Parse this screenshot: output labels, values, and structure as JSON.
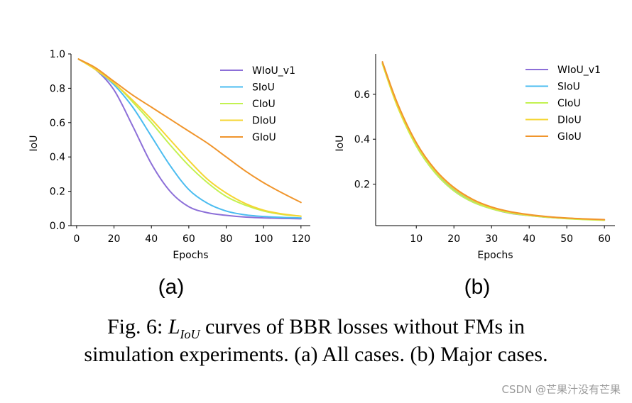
{
  "chart_data": [
    {
      "type": "line",
      "panel_label": "(a)",
      "xlabel": "Epochs",
      "ylabel": "IoU",
      "xlim": [
        -3,
        125
      ],
      "ylim": [
        0,
        1.0
      ],
      "xticks": [
        0,
        20,
        40,
        60,
        80,
        100,
        120
      ],
      "yticks": [
        0.0,
        0.2,
        0.4,
        0.6,
        0.8,
        1.0
      ],
      "ytick_labels": [
        "0.0",
        "0.2",
        "0.4",
        "0.6",
        "0.8",
        "1.0"
      ],
      "legend_position": "top-right",
      "grid": false,
      "x": [
        1,
        10,
        20,
        30,
        40,
        50,
        60,
        70,
        80,
        90,
        100,
        110,
        120
      ],
      "series": [
        {
          "name": "WIoU_v1",
          "color": "#8c6fd8",
          "values": [
            0.97,
            0.91,
            0.79,
            0.58,
            0.36,
            0.2,
            0.11,
            0.075,
            0.06,
            0.05,
            0.045,
            0.042,
            0.04
          ]
        },
        {
          "name": "SIoU",
          "color": "#4bbcf0",
          "values": [
            0.97,
            0.91,
            0.82,
            0.69,
            0.52,
            0.35,
            0.21,
            0.13,
            0.085,
            0.063,
            0.053,
            0.048,
            0.045
          ]
        },
        {
          "name": "CIoU",
          "color": "#c3f251",
          "values": [
            0.97,
            0.91,
            0.83,
            0.72,
            0.6,
            0.47,
            0.35,
            0.25,
            0.17,
            0.12,
            0.085,
            0.065,
            0.055
          ]
        },
        {
          "name": "DIoU",
          "color": "#f5d533",
          "values": [
            0.97,
            0.91,
            0.83,
            0.73,
            0.62,
            0.5,
            0.38,
            0.27,
            0.19,
            0.13,
            0.09,
            0.068,
            0.055
          ]
        },
        {
          "name": "GIoU",
          "color": "#f0952c",
          "values": [
            0.97,
            0.92,
            0.84,
            0.76,
            0.69,
            0.62,
            0.55,
            0.48,
            0.4,
            0.32,
            0.25,
            0.19,
            0.135
          ]
        }
      ]
    },
    {
      "type": "line",
      "panel_label": "(b)",
      "xlabel": "Epochs",
      "ylabel": "IoU",
      "xlim": [
        -0.8,
        62.8
      ],
      "ylim": [
        0.015,
        0.78
      ],
      "xticks": [
        10,
        20,
        30,
        40,
        50,
        60
      ],
      "yticks": [
        0.2,
        0.4,
        0.6
      ],
      "ytick_labels": [
        "0.2",
        "0.4",
        "0.6"
      ],
      "legend_position": "top-right",
      "grid": false,
      "x": [
        1,
        5,
        10,
        15,
        20,
        25,
        30,
        35,
        40,
        45,
        50,
        55,
        60
      ],
      "series": [
        {
          "name": "WIoU_v1",
          "color": "#8c6fd8",
          "values": [
            0.74,
            0.55,
            0.37,
            0.25,
            0.17,
            0.12,
            0.09,
            0.07,
            0.06,
            0.052,
            0.047,
            0.043,
            0.04
          ]
        },
        {
          "name": "SIoU",
          "color": "#4bbcf0",
          "values": [
            0.74,
            0.55,
            0.375,
            0.255,
            0.175,
            0.125,
            0.093,
            0.073,
            0.061,
            0.053,
            0.047,
            0.043,
            0.04
          ]
        },
        {
          "name": "CIoU",
          "color": "#c3f251",
          "values": [
            0.735,
            0.545,
            0.37,
            0.25,
            0.17,
            0.12,
            0.09,
            0.071,
            0.06,
            0.052,
            0.046,
            0.042,
            0.039
          ]
        },
        {
          "name": "DIoU",
          "color": "#f5d533",
          "values": [
            0.74,
            0.55,
            0.38,
            0.26,
            0.18,
            0.128,
            0.095,
            0.075,
            0.062,
            0.054,
            0.048,
            0.044,
            0.041
          ]
        },
        {
          "name": "GIoU",
          "color": "#f0952c",
          "values": [
            0.745,
            0.56,
            0.385,
            0.265,
            0.185,
            0.132,
            0.098,
            0.077,
            0.064,
            0.055,
            0.049,
            0.045,
            0.042
          ]
        }
      ]
    }
  ],
  "caption": {
    "prefix": "Fig. 6: ",
    "math_script": "L",
    "math_subscript": "IoU",
    "line1_rest": " curves of BBR losses without FMs in",
    "line2": "simulation experiments. (a) All cases. (b) Major cases."
  },
  "watermark": "CSDN @芒果汁没有芒果"
}
